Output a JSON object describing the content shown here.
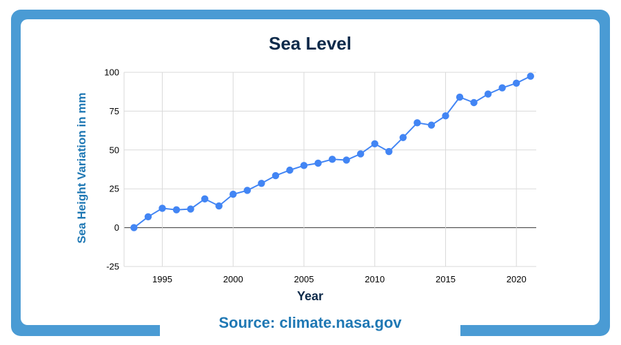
{
  "page": {
    "title": "Sea Level",
    "source": "Source: climate.nasa.gov"
  },
  "colors": {
    "frame": "#4a9bd4",
    "title": "#0d2a4a",
    "source": "#1f78b4",
    "series": "#4285f4",
    "grid": "#d9d9d9",
    "zero_line": "#333333"
  },
  "chart_data": {
    "type": "line",
    "title": "Sea Level",
    "xlabel": "Year",
    "ylabel": "Sea Height Variation in mm",
    "xlim": [
      1992.3,
      2021.4
    ],
    "ylim": [
      -25,
      100
    ],
    "xticks": [
      1995,
      2000,
      2005,
      2010,
      2015,
      2020
    ],
    "yticks": [
      100,
      75,
      50,
      25,
      0,
      -25
    ],
    "grid": true,
    "series": [
      {
        "x": [
          1993,
          1994,
          1995,
          1996,
          1997,
          1998,
          1999,
          2000,
          2001,
          2002,
          2003,
          2004,
          2005,
          2006,
          2007,
          2008,
          2009,
          2010,
          2011,
          2012,
          2013,
          2014,
          2015,
          2016,
          2017,
          2018,
          2019,
          2020,
          2021
        ],
        "y": [
          0,
          7,
          12.5,
          11.5,
          12,
          18.5,
          14,
          21.5,
          24,
          28.5,
          33.5,
          37,
          40,
          41.5,
          44,
          43.5,
          47.5,
          54,
          49,
          58,
          67.5,
          66,
          72,
          84,
          80.5,
          86,
          90,
          93,
          97.5
        ]
      }
    ]
  }
}
